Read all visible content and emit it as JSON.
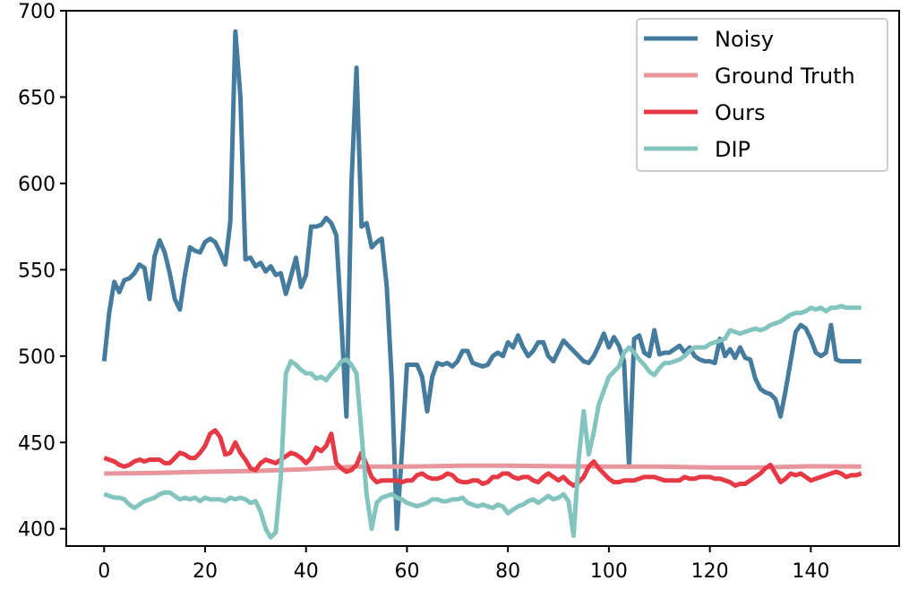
{
  "chart_data": {
    "type": "line",
    "title": "",
    "xlabel": "",
    "ylabel": "",
    "xlim": [
      -7.5,
      157.5
    ],
    "ylim": [
      390,
      700
    ],
    "x_ticks": [
      0,
      20,
      40,
      60,
      80,
      100,
      120,
      140
    ],
    "y_ticks": [
      400,
      450,
      500,
      550,
      600,
      650,
      700
    ],
    "grid": false,
    "legend_position": "top-right",
    "series": [
      {
        "name": "Noisy",
        "color": "#457b9d",
        "x": [
          0,
          1,
          2,
          3,
          4,
          5,
          6,
          7,
          8,
          9,
          10,
          11,
          12,
          13,
          14,
          15,
          16,
          17,
          18,
          19,
          20,
          21,
          22,
          23,
          24,
          25,
          26,
          27,
          28,
          29,
          30,
          31,
          32,
          33,
          34,
          35,
          36,
          37,
          38,
          39,
          40,
          41,
          42,
          43,
          44,
          45,
          46,
          47,
          48,
          49,
          50,
          51,
          52,
          53,
          54,
          55,
          56,
          57,
          58,
          59,
          60,
          61,
          62,
          63,
          64,
          65,
          66,
          67,
          68,
          69,
          70,
          71,
          72,
          73,
          74,
          75,
          76,
          77,
          78,
          79,
          80,
          81,
          82,
          83,
          84,
          85,
          86,
          87,
          88,
          89,
          90,
          91,
          92,
          93,
          94,
          95,
          96,
          97,
          98,
          99,
          100,
          101,
          102,
          103,
          104,
          105,
          106,
          107,
          108,
          109,
          110,
          111,
          112,
          113,
          114,
          115,
          116,
          117,
          118,
          119,
          120,
          121,
          122,
          123,
          124,
          125,
          126,
          127,
          128,
          129,
          130,
          131,
          132,
          133,
          134,
          135,
          136,
          137,
          138,
          139,
          140,
          141,
          142,
          143,
          144,
          145,
          146,
          147,
          148,
          149,
          150
        ],
        "y": [
          497,
          525,
          543,
          537,
          544,
          545,
          548,
          553,
          551,
          533,
          558,
          567,
          560,
          548,
          533,
          527,
          547,
          563,
          561,
          560,
          566,
          568,
          566,
          560,
          553,
          578,
          688,
          650,
          556,
          557,
          552,
          554,
          549,
          552,
          547,
          548,
          536,
          546,
          557,
          540,
          547,
          575,
          575,
          576,
          580,
          577,
          570,
          520,
          465,
          600,
          667,
          575,
          577,
          563,
          566,
          568,
          540,
          485,
          400,
          445,
          495,
          495,
          495,
          488,
          468,
          488,
          496,
          495,
          496,
          494,
          497,
          503,
          503,
          496,
          495,
          494,
          495,
          500,
          502,
          500,
          508,
          505,
          512,
          505,
          500,
          503,
          508,
          508,
          500,
          497,
          503,
          509,
          506,
          503,
          500,
          497,
          496,
          500,
          506,
          513,
          505,
          511,
          506,
          497,
          436,
          510,
          512,
          502,
          500,
          515,
          501,
          502,
          502,
          504,
          506,
          502,
          505,
          500,
          498,
          497,
          497,
          496,
          510,
          500,
          504,
          499,
          505,
          499,
          498,
          487,
          481,
          479,
          478,
          475,
          465,
          480,
          497,
          514,
          518,
          516,
          510,
          502,
          500,
          502,
          518,
          498,
          497,
          497,
          497,
          497,
          497
        ]
      },
      {
        "name": "Ground Truth",
        "color": "#e8959b",
        "x": [
          0,
          10,
          20,
          30,
          40,
          50,
          60,
          70,
          80,
          90,
          100,
          110,
          120,
          130,
          140,
          150
        ],
        "y": [
          432,
          432.3,
          433,
          433.5,
          434.5,
          436,
          436,
          436.5,
          436.5,
          436.2,
          436,
          436,
          435.5,
          435.5,
          436.2,
          436
        ]
      },
      {
        "name": "Ours",
        "color": "#e63946",
        "x": [
          0,
          1,
          2,
          3,
          4,
          5,
          6,
          7,
          8,
          9,
          10,
          11,
          12,
          13,
          14,
          15,
          16,
          17,
          18,
          19,
          20,
          21,
          22,
          23,
          24,
          25,
          26,
          27,
          28,
          29,
          30,
          31,
          32,
          33,
          34,
          35,
          36,
          37,
          38,
          39,
          40,
          41,
          42,
          43,
          44,
          45,
          46,
          47,
          48,
          49,
          50,
          51,
          52,
          53,
          54,
          55,
          56,
          57,
          58,
          59,
          60,
          61,
          62,
          63,
          64,
          65,
          66,
          67,
          68,
          69,
          70,
          71,
          72,
          73,
          74,
          75,
          76,
          77,
          78,
          79,
          80,
          81,
          82,
          83,
          84,
          85,
          86,
          87,
          88,
          89,
          90,
          91,
          92,
          93,
          94,
          95,
          96,
          97,
          98,
          99,
          100,
          101,
          102,
          103,
          104,
          105,
          106,
          107,
          108,
          109,
          110,
          111,
          112,
          113,
          114,
          115,
          116,
          117,
          118,
          119,
          120,
          121,
          122,
          123,
          124,
          125,
          126,
          127,
          128,
          129,
          130,
          131,
          132,
          133,
          134,
          135,
          136,
          137,
          138,
          139,
          140,
          141,
          142,
          143,
          144,
          145,
          146,
          147,
          148,
          149,
          150
        ],
        "y": [
          441,
          440,
          439,
          437,
          436,
          437,
          439,
          440,
          439,
          440,
          440,
          440,
          438,
          438,
          441,
          444,
          443,
          441,
          441,
          444,
          448,
          455,
          457,
          453,
          443,
          444,
          450,
          444,
          440,
          435,
          434,
          438,
          440,
          439,
          438,
          440,
          442,
          444,
          443,
          441,
          438,
          441,
          447,
          445,
          448,
          455,
          438,
          435,
          433,
          434,
          437,
          444,
          437,
          430,
          427,
          428,
          428,
          428,
          428,
          427,
          428,
          428,
          431,
          432,
          430,
          429,
          429,
          430,
          432,
          431,
          428,
          427,
          427,
          428,
          428,
          426,
          427,
          430,
          430,
          432,
          432,
          430,
          429,
          430,
          430,
          428,
          427,
          430,
          432,
          430,
          428,
          430,
          427,
          425,
          427,
          430,
          436,
          439,
          435,
          432,
          429,
          427,
          427,
          428,
          428,
          428,
          429,
          430,
          430,
          430,
          429,
          428,
          428,
          428,
          428,
          430,
          429,
          429,
          430,
          430,
          430,
          429,
          429,
          428,
          427,
          425,
          426,
          426,
          428,
          430,
          432,
          435,
          437,
          432,
          427,
          429,
          432,
          431,
          432,
          430,
          428,
          429,
          430,
          431,
          432,
          433,
          432,
          430,
          431,
          431,
          432
        ]
      },
      {
        "name": "DIP",
        "color": "#83c5be",
        "x": [
          0,
          1,
          2,
          3,
          4,
          5,
          6,
          7,
          8,
          9,
          10,
          11,
          12,
          13,
          14,
          15,
          16,
          17,
          18,
          19,
          20,
          21,
          22,
          23,
          24,
          25,
          26,
          27,
          28,
          29,
          30,
          31,
          32,
          33,
          34,
          35,
          36,
          37,
          38,
          39,
          40,
          41,
          42,
          43,
          44,
          45,
          46,
          47,
          48,
          49,
          50,
          51,
          52,
          53,
          54,
          55,
          56,
          57,
          58,
          59,
          60,
          61,
          62,
          63,
          64,
          65,
          66,
          67,
          68,
          69,
          70,
          71,
          72,
          73,
          74,
          75,
          76,
          77,
          78,
          79,
          80,
          81,
          82,
          83,
          84,
          85,
          86,
          87,
          88,
          89,
          90,
          91,
          92,
          93,
          94,
          95,
          96,
          97,
          98,
          99,
          100,
          101,
          102,
          103,
          104,
          105,
          106,
          107,
          108,
          109,
          110,
          111,
          112,
          113,
          114,
          115,
          116,
          117,
          118,
          119,
          120,
          121,
          122,
          123,
          124,
          125,
          126,
          127,
          128,
          129,
          130,
          131,
          132,
          133,
          134,
          135,
          136,
          137,
          138,
          139,
          140,
          141,
          142,
          143,
          144,
          145,
          146,
          147,
          148,
          149,
          150
        ],
        "y": [
          420,
          419,
          418,
          418,
          417,
          414,
          412,
          414,
          416,
          417,
          418,
          420,
          421,
          421,
          419,
          417,
          418,
          417,
          418,
          416,
          418,
          417,
          417,
          417,
          416,
          418,
          417,
          418,
          417,
          415,
          416,
          410,
          400,
          395,
          398,
          430,
          490,
          497,
          495,
          492,
          490,
          490,
          487,
          488,
          486,
          490,
          493,
          497,
          498,
          495,
          490,
          455,
          420,
          400,
          415,
          418,
          419,
          420,
          418,
          417,
          415,
          414,
          413,
          414,
          415,
          417,
          417,
          416,
          416,
          417,
          417,
          418,
          415,
          414,
          413,
          414,
          413,
          412,
          414,
          413,
          409,
          411,
          413,
          414,
          416,
          417,
          415,
          417,
          419,
          417,
          418,
          420,
          416,
          396,
          440,
          468,
          443,
          456,
          472,
          480,
          488,
          491,
          494,
          502,
          505,
          502,
          498,
          495,
          491,
          489,
          493,
          496,
          496,
          497,
          498,
          500,
          503,
          505,
          505,
          505,
          507,
          508,
          509,
          510,
          515,
          514,
          513,
          514,
          515,
          516,
          515,
          516,
          518,
          519,
          520,
          522,
          524,
          525,
          525,
          526,
          528,
          527,
          528,
          526,
          528,
          528,
          529,
          528,
          528,
          528,
          528
        ]
      }
    ]
  }
}
